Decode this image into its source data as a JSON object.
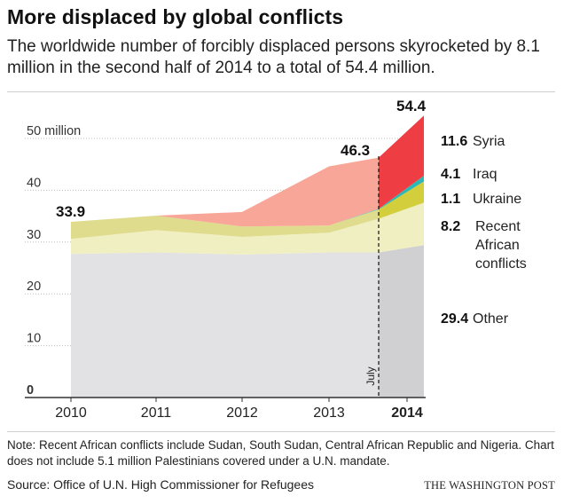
{
  "title": "More displaced by global conflicts",
  "subtitle": "The worldwide number of forcibly displaced persons skyrocketed by 8.1 million in the second half of 2014 to a total of 54.4 million.",
  "note": "Note: Recent African conflicts include Sudan, South Sudan, Central African Republic and Nigeria. Chart does not include 5.1 million Palestinians covered under a U.N. mandate.",
  "source": "Source: Office of U.N. High Commissioner for Refugees",
  "brand": "THE WASHINGTON POST",
  "colors": {
    "other": "#e2e2e4",
    "other_2014": "#d0d0d3",
    "african": "#f0efc2",
    "iraq": "#e0dc8e",
    "iraq_2014": "#d3ce3c",
    "ukraine": "#2cb8b5",
    "syria": "#f8a698",
    "syria_2014": "#ef3e43",
    "gridline": "#bdbdbd",
    "axis": "#333333"
  },
  "chart_data": {
    "type": "area",
    "stacked": true,
    "x": [
      2010,
      2011,
      2012,
      2013,
      2014.5,
      2015
    ],
    "series": [
      {
        "name": "Other",
        "key": "other",
        "values": [
          27.7,
          28.0,
          27.6,
          28.0,
          28.0,
          29.4
        ]
      },
      {
        "name": "Recent African conflicts",
        "key": "african",
        "values": [
          2.9,
          4.3,
          3.4,
          3.8,
          6.5,
          8.2
        ]
      },
      {
        "name": "Iraq",
        "key": "iraq",
        "values": [
          3.3,
          2.8,
          2.0,
          1.4,
          1.8,
          4.1
        ]
      },
      {
        "name": "Ukraine",
        "key": "ukraine",
        "values": [
          0,
          0,
          0,
          0,
          0.1,
          1.1
        ]
      },
      {
        "name": "Syria",
        "key": "syria",
        "values": [
          0,
          0,
          2.8,
          11.4,
          9.9,
          11.6
        ]
      }
    ],
    "xticks": [
      "2010",
      "2011",
      "2012",
      "2013",
      "2014"
    ],
    "yticks": [
      "0",
      "10",
      "20",
      "30",
      "40",
      "50 million"
    ],
    "ylim": [
      0,
      55
    ],
    "annotations": {
      "start_total": "33.9",
      "mid_total": "46.3",
      "end_total": "54.4",
      "july_label": "July"
    },
    "end_labels": [
      {
        "value": "11.6",
        "name": "Syria"
      },
      {
        "value": "4.1",
        "name": "Iraq"
      },
      {
        "value": "1.1",
        "name": "Ukraine"
      },
      {
        "value": "8.2",
        "name": "Recent African conflicts"
      },
      {
        "value": "29.4",
        "name": "Other"
      }
    ]
  }
}
